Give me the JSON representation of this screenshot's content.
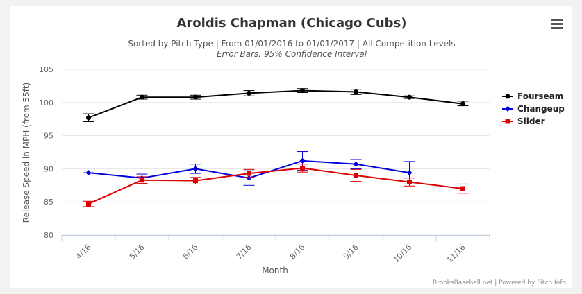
{
  "chart_data": {
    "type": "line",
    "title": "Aroldis Chapman (Chicago Cubs)",
    "subtitle": "Sorted by Pitch Type | From 01/01/2016 to 01/01/2017 | All Competition Levels",
    "subtitle2": "Error Bars: 95% Confidence Interval",
    "xlabel": "Month",
    "ylabel": "Release Speed in MPH (from 55ft)",
    "categories": [
      "4/16",
      "5/16",
      "6/16",
      "7/16",
      "8/16",
      "9/16",
      "10/16",
      "11/16"
    ],
    "ylim": [
      80,
      105
    ],
    "yticks": [
      80,
      85,
      90,
      95,
      100,
      105
    ],
    "grid": true,
    "legend_position": "right",
    "series": [
      {
        "name": "Fourseam",
        "color": "#000000",
        "marker": "circle",
        "values": [
          97.7,
          100.8,
          100.8,
          101.4,
          101.8,
          101.6,
          100.8,
          99.8
        ],
        "error_low": [
          97.1,
          100.5,
          100.5,
          101.0,
          101.5,
          101.2,
          100.6,
          99.5
        ],
        "error_high": [
          98.3,
          101.1,
          101.1,
          101.8,
          102.1,
          102.0,
          101.0,
          100.2
        ]
      },
      {
        "name": "Changeup",
        "color": "#0000dd",
        "marker": "diamond",
        "values": [
          89.4,
          88.6,
          90.0,
          88.6,
          91.2,
          90.7,
          89.4,
          null
        ],
        "error_low": [
          89.4,
          88.0,
          89.3,
          87.5,
          89.8,
          90.0,
          87.7,
          null
        ],
        "error_high": [
          89.4,
          89.2,
          90.7,
          89.7,
          92.6,
          91.4,
          91.1,
          null
        ]
      },
      {
        "name": "Slider",
        "color": "#dd0000",
        "marker": "square",
        "values": [
          84.7,
          88.3,
          88.2,
          89.3,
          90.1,
          89.0,
          88.0,
          87.0
        ],
        "error_low": [
          84.3,
          87.8,
          87.7,
          88.7,
          89.5,
          88.1,
          87.4,
          86.3
        ],
        "error_high": [
          85.1,
          88.8,
          88.7,
          89.9,
          90.7,
          89.9,
          88.6,
          87.7
        ]
      }
    ],
    "credits": "BrooksBaseball.net | Powered by Pitch Info"
  }
}
